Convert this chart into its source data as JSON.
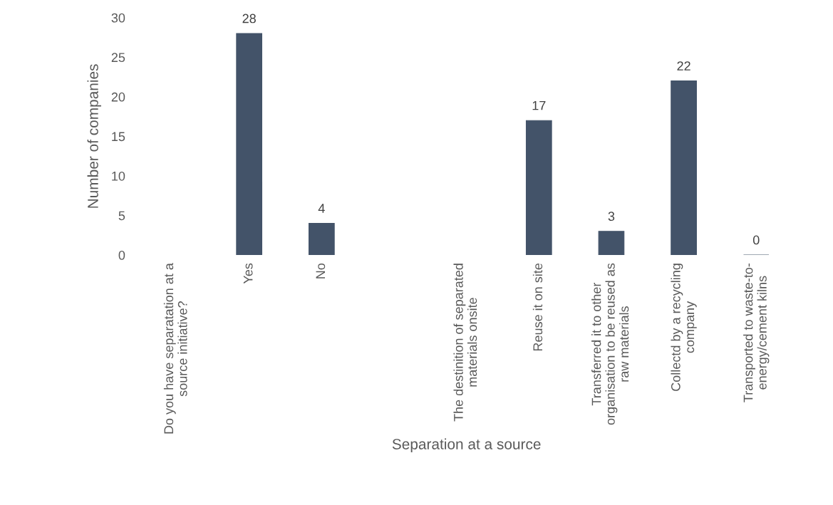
{
  "chart_data": {
    "type": "bar",
    "xlabel": "Separation at a source",
    "ylabel": "Number of companies",
    "categories": [
      "Do you have separatation at a\nsource initiative?",
      "Yes",
      "No",
      null,
      "The destinition of separated\nmaterials onsite",
      "Reuse it on site",
      "Transferred it to other\norganisation to be reused as\nraw materials",
      "Collectd by a recycling\ncompany",
      "Transported to waste-to-\nenergy/cement kilns"
    ],
    "values": [
      null,
      28,
      4,
      null,
      null,
      17,
      3,
      22,
      0
    ],
    "color": "#435369",
    "ylim": [
      0,
      30
    ],
    "yticks": [
      0,
      5,
      10,
      15,
      20,
      25,
      30
    ],
    "data_labels": true,
    "grid": false,
    "legend": false
  }
}
